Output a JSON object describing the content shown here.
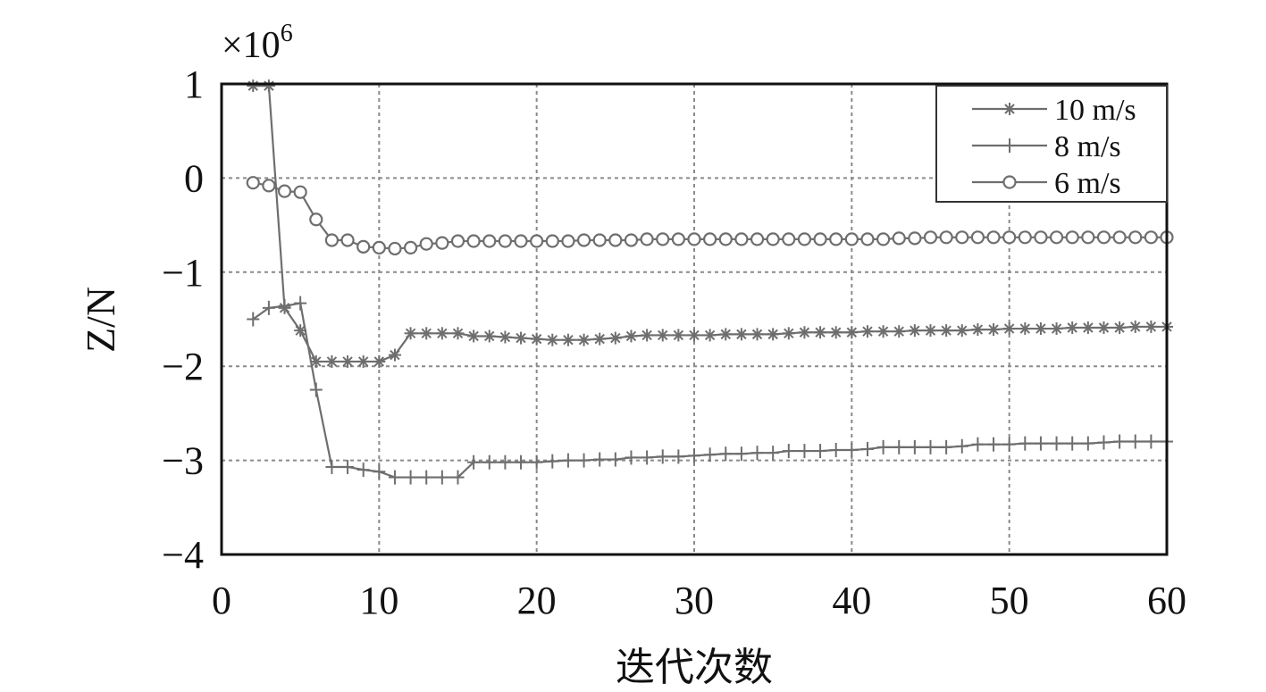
{
  "chart_data": {
    "type": "line",
    "title": "",
    "xlabel": "迭代次数",
    "ylabel": "Z/N",
    "y_multiplier": "×10",
    "y_multiplier_exp": "6",
    "xlim": [
      0,
      60
    ],
    "ylim": [
      -4,
      1
    ],
    "x_ticks": [
      0,
      10,
      20,
      30,
      40,
      50,
      60
    ],
    "x_tick_labels": [
      "0",
      "10",
      "20",
      "30",
      "40",
      "50",
      "60"
    ],
    "y_ticks": [
      1,
      0,
      -1,
      -2,
      -3,
      -4
    ],
    "y_tick_labels": [
      "1",
      "0",
      "−1",
      "−2",
      "−3",
      "−4"
    ],
    "grid": true,
    "legend_position": "top-right",
    "series": [
      {
        "name": "10 m/s",
        "marker": "star",
        "color": "#6e6e6e",
        "x": [
          2,
          3,
          4,
          5,
          6,
          7,
          8,
          9,
          10,
          11,
          12,
          13,
          14,
          15,
          16,
          17,
          18,
          19,
          20,
          21,
          22,
          23,
          24,
          25,
          26,
          27,
          28,
          29,
          30,
          31,
          32,
          33,
          34,
          35,
          36,
          37,
          38,
          39,
          40,
          41,
          42,
          43,
          44,
          45,
          46,
          47,
          48,
          49,
          50,
          51,
          52,
          53,
          54,
          55,
          56,
          57,
          58,
          59,
          60
        ],
        "values": [
          0.98,
          0.98,
          -1.38,
          -1.62,
          -1.95,
          -1.95,
          -1.95,
          -1.95,
          -1.95,
          -1.88,
          -1.65,
          -1.65,
          -1.65,
          -1.65,
          -1.68,
          -1.68,
          -1.69,
          -1.7,
          -1.71,
          -1.72,
          -1.72,
          -1.72,
          -1.71,
          -1.7,
          -1.68,
          -1.67,
          -1.67,
          -1.67,
          -1.67,
          -1.67,
          -1.66,
          -1.66,
          -1.66,
          -1.66,
          -1.65,
          -1.64,
          -1.64,
          -1.64,
          -1.64,
          -1.63,
          -1.63,
          -1.63,
          -1.62,
          -1.62,
          -1.62,
          -1.62,
          -1.61,
          -1.61,
          -1.6,
          -1.6,
          -1.6,
          -1.6,
          -1.59,
          -1.59,
          -1.59,
          -1.59,
          -1.58,
          -1.58,
          -1.58
        ]
      },
      {
        "name": "8 m/s",
        "marker": "plus",
        "color": "#6e6e6e",
        "x": [
          2,
          3,
          4,
          5,
          6,
          7,
          8,
          9,
          10,
          11,
          12,
          13,
          14,
          15,
          16,
          17,
          18,
          19,
          20,
          21,
          22,
          23,
          24,
          25,
          26,
          27,
          28,
          29,
          30,
          31,
          32,
          33,
          34,
          35,
          36,
          37,
          38,
          39,
          40,
          41,
          42,
          43,
          44,
          45,
          46,
          47,
          48,
          49,
          50,
          51,
          52,
          53,
          54,
          55,
          56,
          57,
          58,
          59,
          60
        ],
        "values": [
          -1.5,
          -1.38,
          -1.36,
          -1.33,
          -2.25,
          -3.07,
          -3.07,
          -3.1,
          -3.12,
          -3.18,
          -3.18,
          -3.18,
          -3.18,
          -3.18,
          -3.02,
          -3.02,
          -3.02,
          -3.02,
          -3.02,
          -3.01,
          -3.0,
          -3.0,
          -2.99,
          -2.99,
          -2.97,
          -2.97,
          -2.96,
          -2.96,
          -2.95,
          -2.94,
          -2.93,
          -2.93,
          -2.92,
          -2.92,
          -2.9,
          -2.9,
          -2.9,
          -2.89,
          -2.89,
          -2.88,
          -2.86,
          -2.86,
          -2.86,
          -2.86,
          -2.86,
          -2.85,
          -2.83,
          -2.83,
          -2.83,
          -2.82,
          -2.82,
          -2.82,
          -2.82,
          -2.82,
          -2.81,
          -2.8,
          -2.8,
          -2.8,
          -2.8
        ]
      },
      {
        "name": "6 m/s",
        "marker": "circle",
        "color": "#6e6e6e",
        "x": [
          2,
          3,
          4,
          5,
          6,
          7,
          8,
          9,
          10,
          11,
          12,
          13,
          14,
          15,
          16,
          17,
          18,
          19,
          20,
          21,
          22,
          23,
          24,
          25,
          26,
          27,
          28,
          29,
          30,
          31,
          32,
          33,
          34,
          35,
          36,
          37,
          38,
          39,
          40,
          41,
          42,
          43,
          44,
          45,
          46,
          47,
          48,
          49,
          50,
          51,
          52,
          53,
          54,
          55,
          56,
          57,
          58,
          59,
          60
        ],
        "values": [
          -0.05,
          -0.08,
          -0.14,
          -0.15,
          -0.44,
          -0.66,
          -0.66,
          -0.73,
          -0.74,
          -0.75,
          -0.74,
          -0.7,
          -0.69,
          -0.67,
          -0.67,
          -0.67,
          -0.67,
          -0.67,
          -0.67,
          -0.67,
          -0.67,
          -0.66,
          -0.66,
          -0.66,
          -0.66,
          -0.65,
          -0.65,
          -0.65,
          -0.65,
          -0.65,
          -0.65,
          -0.65,
          -0.65,
          -0.65,
          -0.65,
          -0.65,
          -0.65,
          -0.65,
          -0.65,
          -0.65,
          -0.65,
          -0.64,
          -0.64,
          -0.63,
          -0.63,
          -0.63,
          -0.63,
          -0.63,
          -0.63,
          -0.63,
          -0.63,
          -0.63,
          -0.63,
          -0.63,
          -0.63,
          -0.63,
          -0.63,
          -0.63,
          -0.63
        ]
      }
    ]
  }
}
